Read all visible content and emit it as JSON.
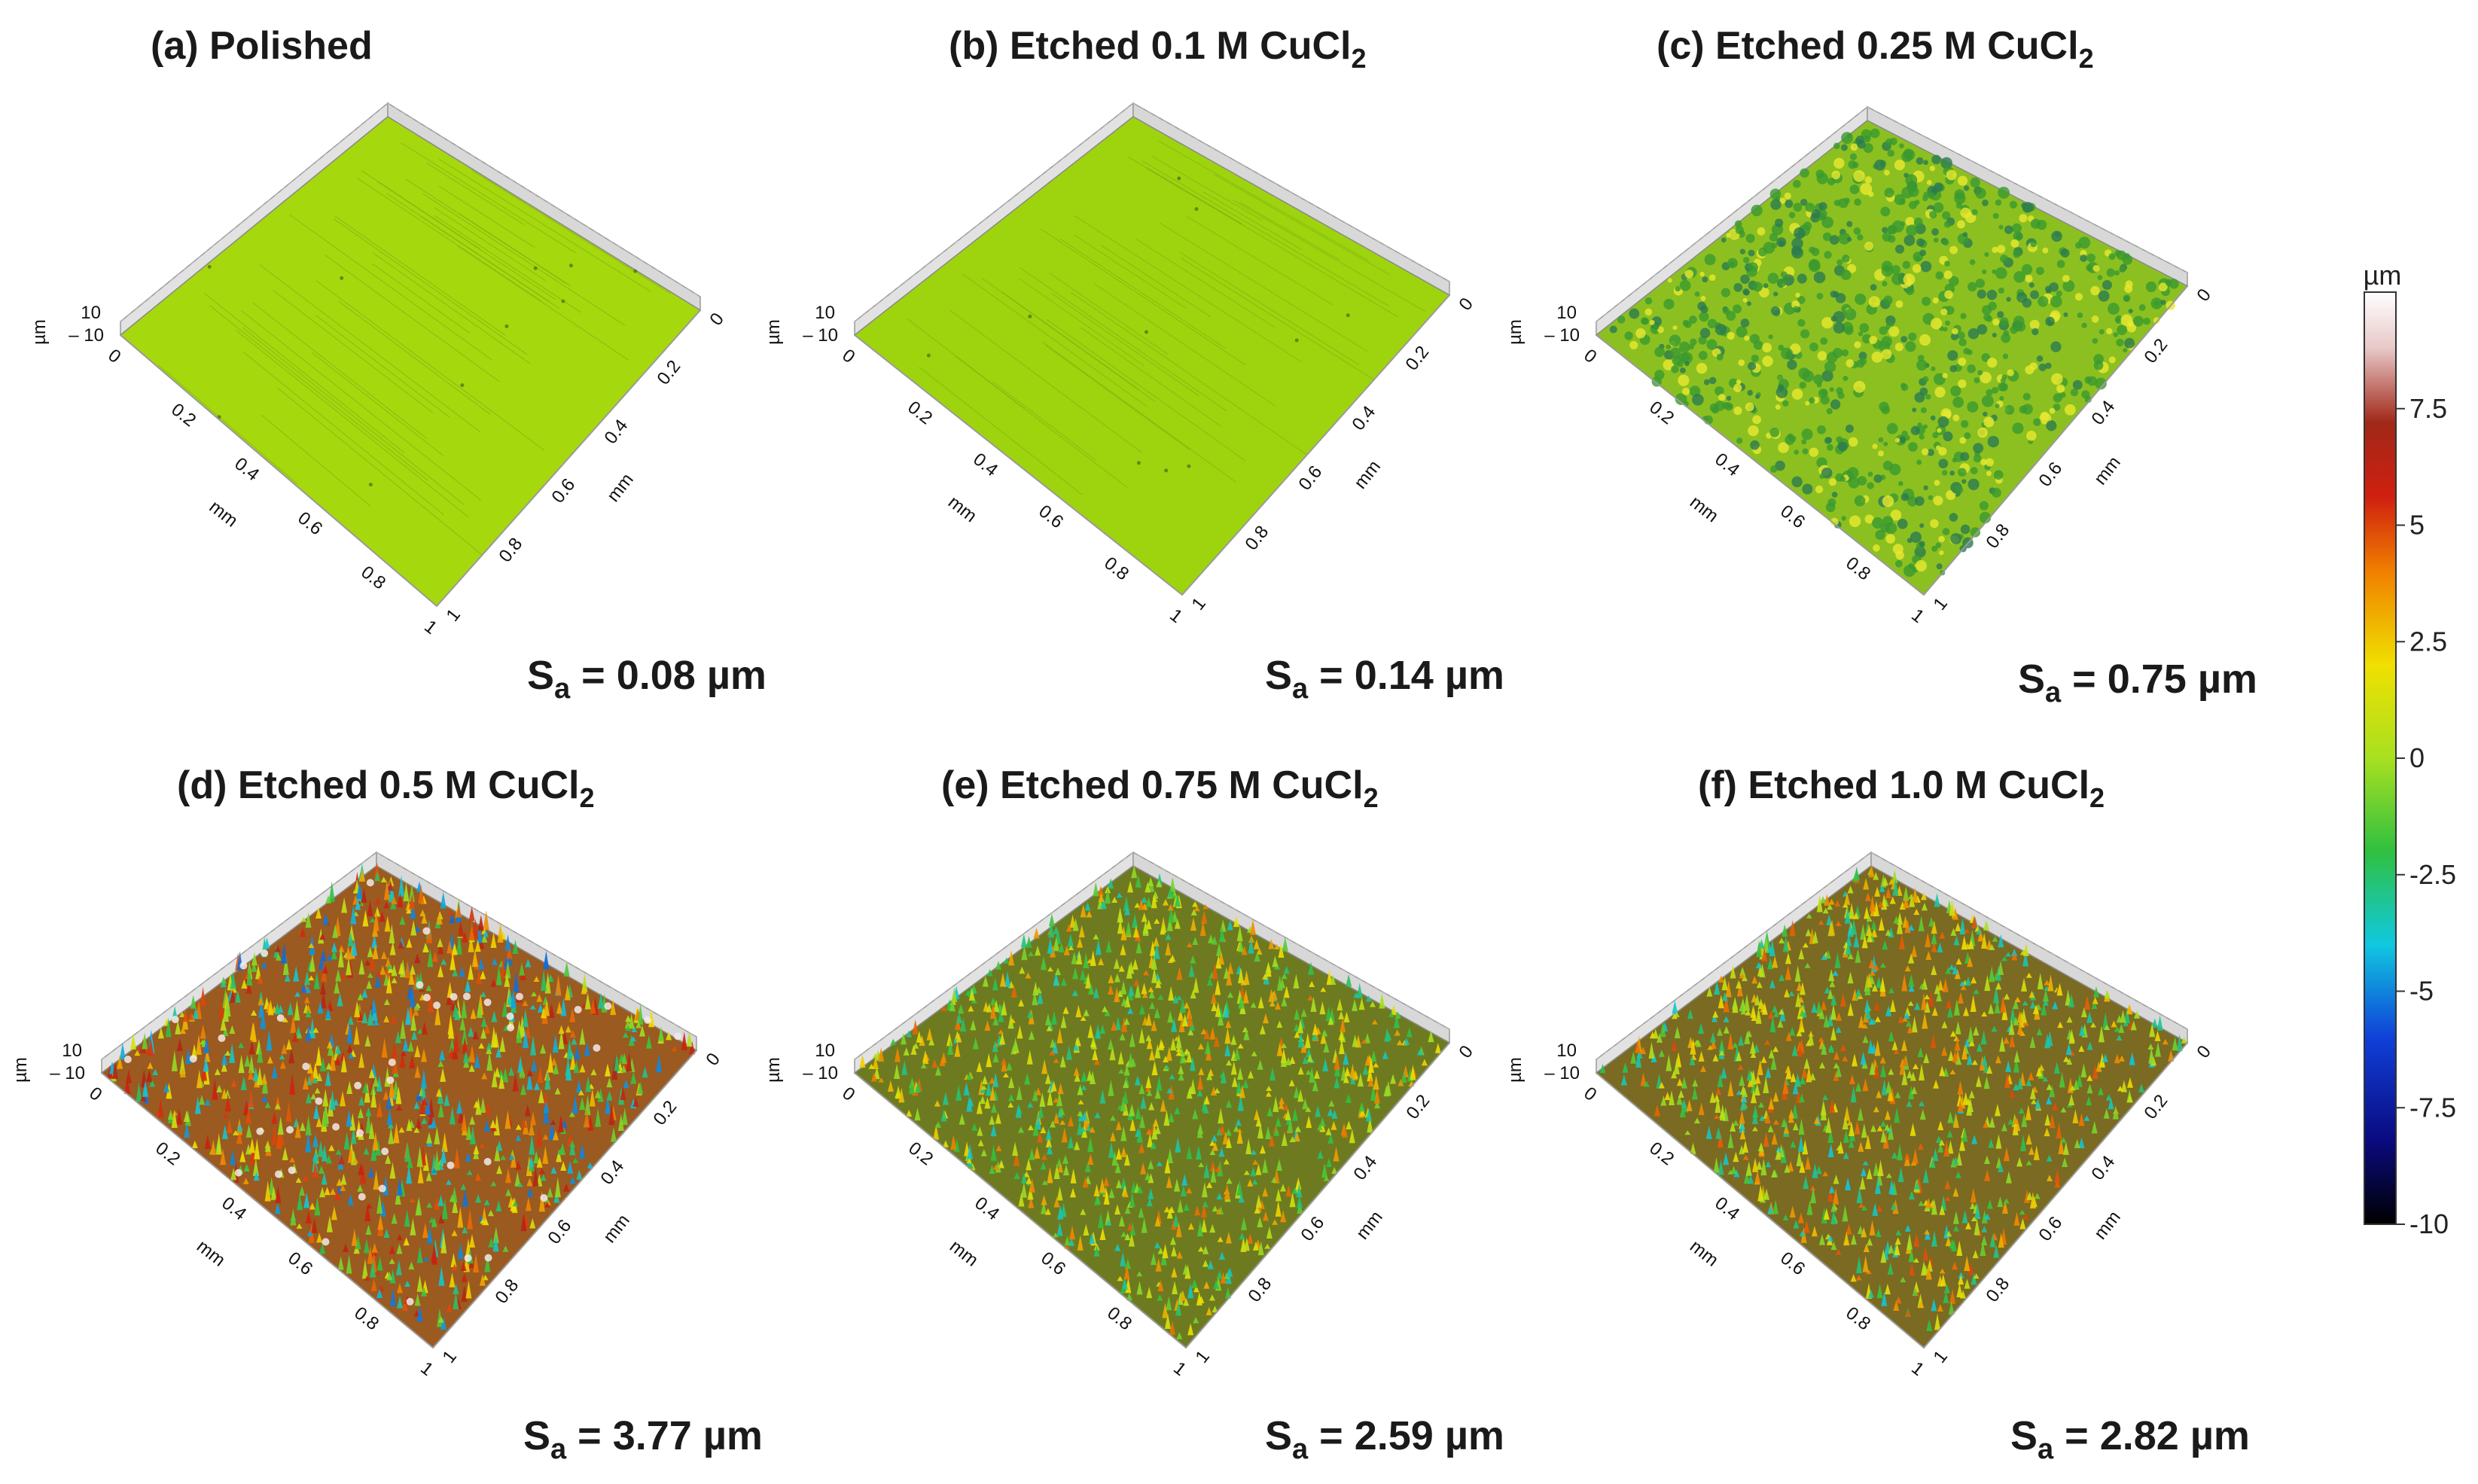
{
  "colorbar": {
    "unit": "µm",
    "ticks": [
      "7.5",
      "5",
      "2.5",
      "0",
      "-2.5",
      "-5",
      "-7.5",
      "-10"
    ],
    "tick_values": [
      7.5,
      5,
      2.5,
      0,
      -2.5,
      -5,
      -7.5,
      -10
    ],
    "range": [
      -10,
      10
    ],
    "colors": [
      "#000000",
      "#0a0a80",
      "#1040d8",
      "#10c8e0",
      "#30c040",
      "#a8e020",
      "#f0e000",
      "#f08000",
      "#d02010",
      "#a02818",
      "#e8c8c8",
      "#ffffff"
    ]
  },
  "axes": {
    "z_ticks": [
      "10",
      "– 10"
    ],
    "z_unit": "µm",
    "x_ticks": [
      "0",
      "0.2",
      "0.4",
      "0.6",
      "0.8",
      "1"
    ],
    "x_unit": "mm",
    "y_ticks": [
      "0",
      "0.2",
      "0.4",
      "0.6",
      "0.8",
      "1"
    ],
    "y_unit": "mm"
  },
  "panels": [
    {
      "id": "a",
      "title_main": "(a) Polished",
      "title_sub": "",
      "sa_prefix": "S",
      "sa_sub": "a",
      "sa_value": " = 0.08 µm",
      "sa": 0.08,
      "texture": "smooth",
      "surface_color": "#a6d80e"
    },
    {
      "id": "b",
      "title_main": "(b) Etched 0.1 M CuCl",
      "title_sub": "2",
      "sa_prefix": "S",
      "sa_sub": "a",
      "sa_value": " = 0.14 µm",
      "sa": 0.14,
      "texture": "smooth",
      "surface_color": "#9ed40e"
    },
    {
      "id": "c",
      "title_main": "(c) Etched 0.25 M CuCl",
      "title_sub": "2",
      "sa_prefix": "S",
      "sa_sub": "a",
      "sa_value": " = 0.75 µm",
      "sa": 0.75,
      "texture": "speckled",
      "surface_color": "#8cc020"
    },
    {
      "id": "d",
      "title_main": "(d) Etched 0.5 M CuCl",
      "title_sub": "2",
      "sa_prefix": "S",
      "sa_sub": "a",
      "sa_value": " = 3.77 µm",
      "sa": 3.77,
      "texture": "rough",
      "surface_color": "#9a5a20"
    },
    {
      "id": "e",
      "title_main": "(e) Etched 0.75 M CuCl",
      "title_sub": "2",
      "sa_prefix": "S",
      "sa_sub": "a",
      "sa_value": " = 2.59 µm",
      "sa": 2.59,
      "texture": "rough",
      "surface_color": "#6e7a20"
    },
    {
      "id": "f",
      "title_main": "(f) Etched 1.0 M CuCl",
      "title_sub": "2",
      "sa_prefix": "S",
      "sa_sub": "a",
      "sa_value": " = 2.82 µm",
      "sa": 2.82,
      "texture": "rough",
      "surface_color": "#7a6a22"
    }
  ]
}
